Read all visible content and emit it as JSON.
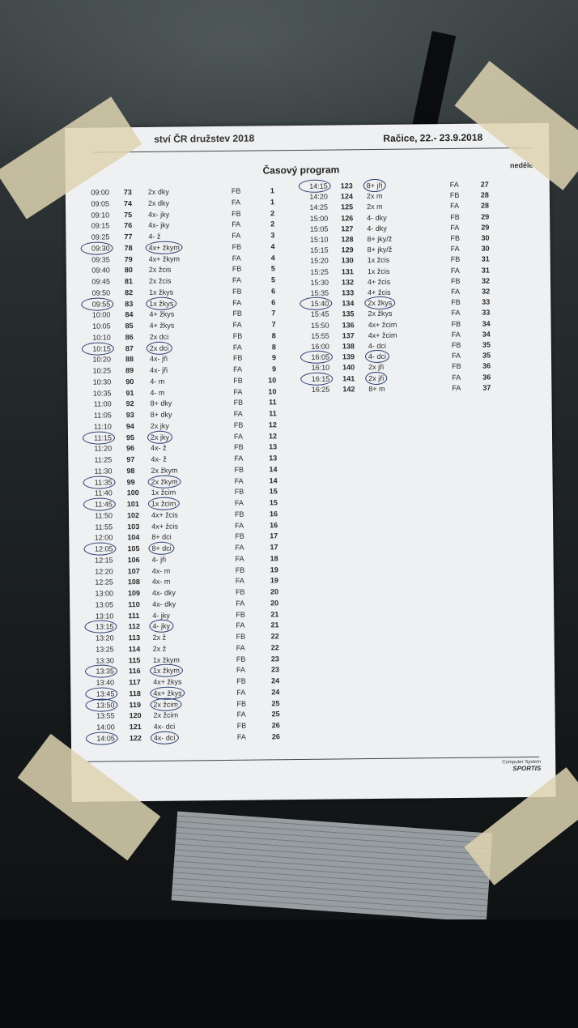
{
  "header": {
    "event": "ství ČR družstev 2018",
    "place_date": "Račice, 22.- 23.9.2018"
  },
  "title": "Časový program",
  "day": "neděle",
  "footer": {
    "line1": "Computer System",
    "brand": "SPORTIS"
  },
  "left_rows": [
    {
      "t": "09:00",
      "n": "73",
      "e": "2x dky",
      "l": "FB",
      "r": "1",
      "m": false
    },
    {
      "t": "09:05",
      "n": "74",
      "e": "2x dky",
      "l": "FA",
      "r": "1",
      "m": false
    },
    {
      "t": "09:10",
      "n": "75",
      "e": "4x- jky",
      "l": "FB",
      "r": "2",
      "m": false
    },
    {
      "t": "09:15",
      "n": "76",
      "e": "4x- jky",
      "l": "FA",
      "r": "2",
      "m": false
    },
    {
      "t": "09:25",
      "n": "77",
      "e": "4- ž",
      "l": "FA",
      "r": "3",
      "m": false
    },
    {
      "t": "09:30",
      "n": "78",
      "e": "4x+ žkym",
      "l": "FB",
      "r": "4",
      "m": true
    },
    {
      "t": "09:35",
      "n": "79",
      "e": "4x+ žkym",
      "l": "FA",
      "r": "4",
      "m": false
    },
    {
      "t": "09:40",
      "n": "80",
      "e": "2x žcis",
      "l": "FB",
      "r": "5",
      "m": false
    },
    {
      "t": "09:45",
      "n": "81",
      "e": "2x žcis",
      "l": "FA",
      "r": "5",
      "m": false
    },
    {
      "t": "09:50",
      "n": "82",
      "e": "1x žkys",
      "l": "FB",
      "r": "6",
      "m": false
    },
    {
      "t": "09:55",
      "n": "83",
      "e": "1x žkys",
      "l": "FA",
      "r": "6",
      "m": true
    },
    {
      "t": "10:00",
      "n": "84",
      "e": "4+ žkys",
      "l": "FB",
      "r": "7",
      "m": false
    },
    {
      "t": "10:05",
      "n": "85",
      "e": "4+ žkys",
      "l": "FA",
      "r": "7",
      "m": false
    },
    {
      "t": "10:10",
      "n": "86",
      "e": "2x dci",
      "l": "FB",
      "r": "8",
      "m": false
    },
    {
      "t": "10:15",
      "n": "87",
      "e": "2x dci",
      "l": "FA",
      "r": "8",
      "m": true
    },
    {
      "t": "10:20",
      "n": "88",
      "e": "4x- jři",
      "l": "FB",
      "r": "9",
      "m": false
    },
    {
      "t": "10:25",
      "n": "89",
      "e": "4x- jři",
      "l": "FA",
      "r": "9",
      "m": false
    },
    {
      "t": "10:30",
      "n": "90",
      "e": "4- m",
      "l": "FB",
      "r": "10",
      "m": false
    },
    {
      "t": "10:35",
      "n": "91",
      "e": "4- m",
      "l": "FA",
      "r": "10",
      "m": false
    },
    {
      "t": "11:00",
      "n": "92",
      "e": "8+ dky",
      "l": "FB",
      "r": "11",
      "m": false
    },
    {
      "t": "11:05",
      "n": "93",
      "e": "8+ dky",
      "l": "FA",
      "r": "11",
      "m": false
    },
    {
      "t": "11:10",
      "n": "94",
      "e": "2x jky",
      "l": "FB",
      "r": "12",
      "m": false
    },
    {
      "t": "11:15",
      "n": "95",
      "e": "2x jky",
      "l": "FA",
      "r": "12",
      "m": true
    },
    {
      "t": "11:20",
      "n": "96",
      "e": "4x- ž",
      "l": "FB",
      "r": "13",
      "m": false
    },
    {
      "t": "11:25",
      "n": "97",
      "e": "4x- ž",
      "l": "FA",
      "r": "13",
      "m": false
    },
    {
      "t": "11:30",
      "n": "98",
      "e": "2x žkym",
      "l": "FB",
      "r": "14",
      "m": false
    },
    {
      "t": "11:35",
      "n": "99",
      "e": "2x žkym",
      "l": "FA",
      "r": "14",
      "m": true
    },
    {
      "t": "11:40",
      "n": "100",
      "e": "1x žcim",
      "l": "FB",
      "r": "15",
      "m": false
    },
    {
      "t": "11:45",
      "n": "101",
      "e": "1x žcim",
      "l": "FA",
      "r": "15",
      "m": true
    },
    {
      "t": "11:50",
      "n": "102",
      "e": "4x+ žcis",
      "l": "FB",
      "r": "16",
      "m": false
    },
    {
      "t": "11:55",
      "n": "103",
      "e": "4x+ žcis",
      "l": "FA",
      "r": "16",
      "m": false
    },
    {
      "t": "12:00",
      "n": "104",
      "e": "8+ dci",
      "l": "FB",
      "r": "17",
      "m": false
    },
    {
      "t": "12:05",
      "n": "105",
      "e": "8+ dci",
      "l": "FA",
      "r": "17",
      "m": true
    },
    {
      "t": "12:15",
      "n": "106",
      "e": "4- jři",
      "l": "FA",
      "r": "18",
      "m": false
    },
    {
      "t": "12:20",
      "n": "107",
      "e": "4x- m",
      "l": "FB",
      "r": "19",
      "m": false
    },
    {
      "t": "12:25",
      "n": "108",
      "e": "4x- m",
      "l": "FA",
      "r": "19",
      "m": false
    },
    {
      "t": "13:00",
      "n": "109",
      "e": "4x- dky",
      "l": "FB",
      "r": "20",
      "m": false
    },
    {
      "t": "13:05",
      "n": "110",
      "e": "4x- dky",
      "l": "FA",
      "r": "20",
      "m": false
    },
    {
      "t": "13:10",
      "n": "111",
      "e": "4- jky",
      "l": "FB",
      "r": "21",
      "m": false
    },
    {
      "t": "13:15",
      "n": "112",
      "e": "4- jky",
      "l": "FA",
      "r": "21",
      "m": true
    },
    {
      "t": "13:20",
      "n": "113",
      "e": "2x ž",
      "l": "FB",
      "r": "22",
      "m": false
    },
    {
      "t": "13:25",
      "n": "114",
      "e": "2x ž",
      "l": "FA",
      "r": "22",
      "m": false
    },
    {
      "t": "13:30",
      "n": "115",
      "e": "1x žkym",
      "l": "FB",
      "r": "23",
      "m": false
    },
    {
      "t": "13:35",
      "n": "116",
      "e": "1x žkym",
      "l": "FA",
      "r": "23",
      "m": true
    },
    {
      "t": "13:40",
      "n": "117",
      "e": "4x+ žkys",
      "l": "FB",
      "r": "24",
      "m": false
    },
    {
      "t": "13:45",
      "n": "118",
      "e": "4x+ žkys",
      "l": "FA",
      "r": "24",
      "m": true
    },
    {
      "t": "13:50",
      "n": "119",
      "e": "2x žcim",
      "l": "FB",
      "r": "25",
      "m": true
    },
    {
      "t": "13:55",
      "n": "120",
      "e": "2x žcim",
      "l": "FA",
      "r": "25",
      "m": false
    },
    {
      "t": "14:00",
      "n": "121",
      "e": "4x- dci",
      "l": "FB",
      "r": "26",
      "m": false
    },
    {
      "t": "14:05",
      "n": "122",
      "e": "4x- dci",
      "l": "FA",
      "r": "26",
      "m": true
    }
  ],
  "right_rows": [
    {
      "t": "14:15",
      "n": "123",
      "e": "8+ jři",
      "l": "FA",
      "r": "27",
      "m": true
    },
    {
      "t": "14:20",
      "n": "124",
      "e": "2x m",
      "l": "FB",
      "r": "28",
      "m": false
    },
    {
      "t": "14:25",
      "n": "125",
      "e": "2x m",
      "l": "FA",
      "r": "28",
      "m": false
    },
    {
      "t": "15:00",
      "n": "126",
      "e": "4- dky",
      "l": "FB",
      "r": "29",
      "m": false
    },
    {
      "t": "15:05",
      "n": "127",
      "e": "4- dky",
      "l": "FA",
      "r": "29",
      "m": false
    },
    {
      "t": "15:10",
      "n": "128",
      "e": "8+ jky/ž",
      "l": "FB",
      "r": "30",
      "m": false
    },
    {
      "t": "15:15",
      "n": "129",
      "e": "8+ jky/ž",
      "l": "FA",
      "r": "30",
      "m": false
    },
    {
      "t": "15:20",
      "n": "130",
      "e": "1x žcis",
      "l": "FB",
      "r": "31",
      "m": false
    },
    {
      "t": "15:25",
      "n": "131",
      "e": "1x žcis",
      "l": "FA",
      "r": "31",
      "m": false
    },
    {
      "t": "15:30",
      "n": "132",
      "e": "4+ žcis",
      "l": "FB",
      "r": "32",
      "m": false
    },
    {
      "t": "15:35",
      "n": "133",
      "e": "4+ žcis",
      "l": "FA",
      "r": "32",
      "m": false
    },
    {
      "t": "15:40",
      "n": "134",
      "e": "2x žkys",
      "l": "FB",
      "r": "33",
      "m": true
    },
    {
      "t": "15:45",
      "n": "135",
      "e": "2x žkys",
      "l": "FA",
      "r": "33",
      "m": false
    },
    {
      "t": "15:50",
      "n": "136",
      "e": "4x+ žcim",
      "l": "FB",
      "r": "34",
      "m": false
    },
    {
      "t": "15:55",
      "n": "137",
      "e": "4x+ žcim",
      "l": "FA",
      "r": "34",
      "m": false
    },
    {
      "t": "16:00",
      "n": "138",
      "e": "4- dci",
      "l": "FB",
      "r": "35",
      "m": false
    },
    {
      "t": "16:05",
      "n": "139",
      "e": "4- dci",
      "l": "FA",
      "r": "35",
      "m": true
    },
    {
      "t": "16:10",
      "n": "140",
      "e": "2x jři",
      "l": "FB",
      "r": "36",
      "m": false
    },
    {
      "t": "16:15",
      "n": "141",
      "e": "2x jři",
      "l": "FA",
      "r": "36",
      "m": true
    },
    {
      "t": "16:25",
      "n": "142",
      "e": "8+ m",
      "l": "FA",
      "r": "37",
      "m": false
    }
  ]
}
